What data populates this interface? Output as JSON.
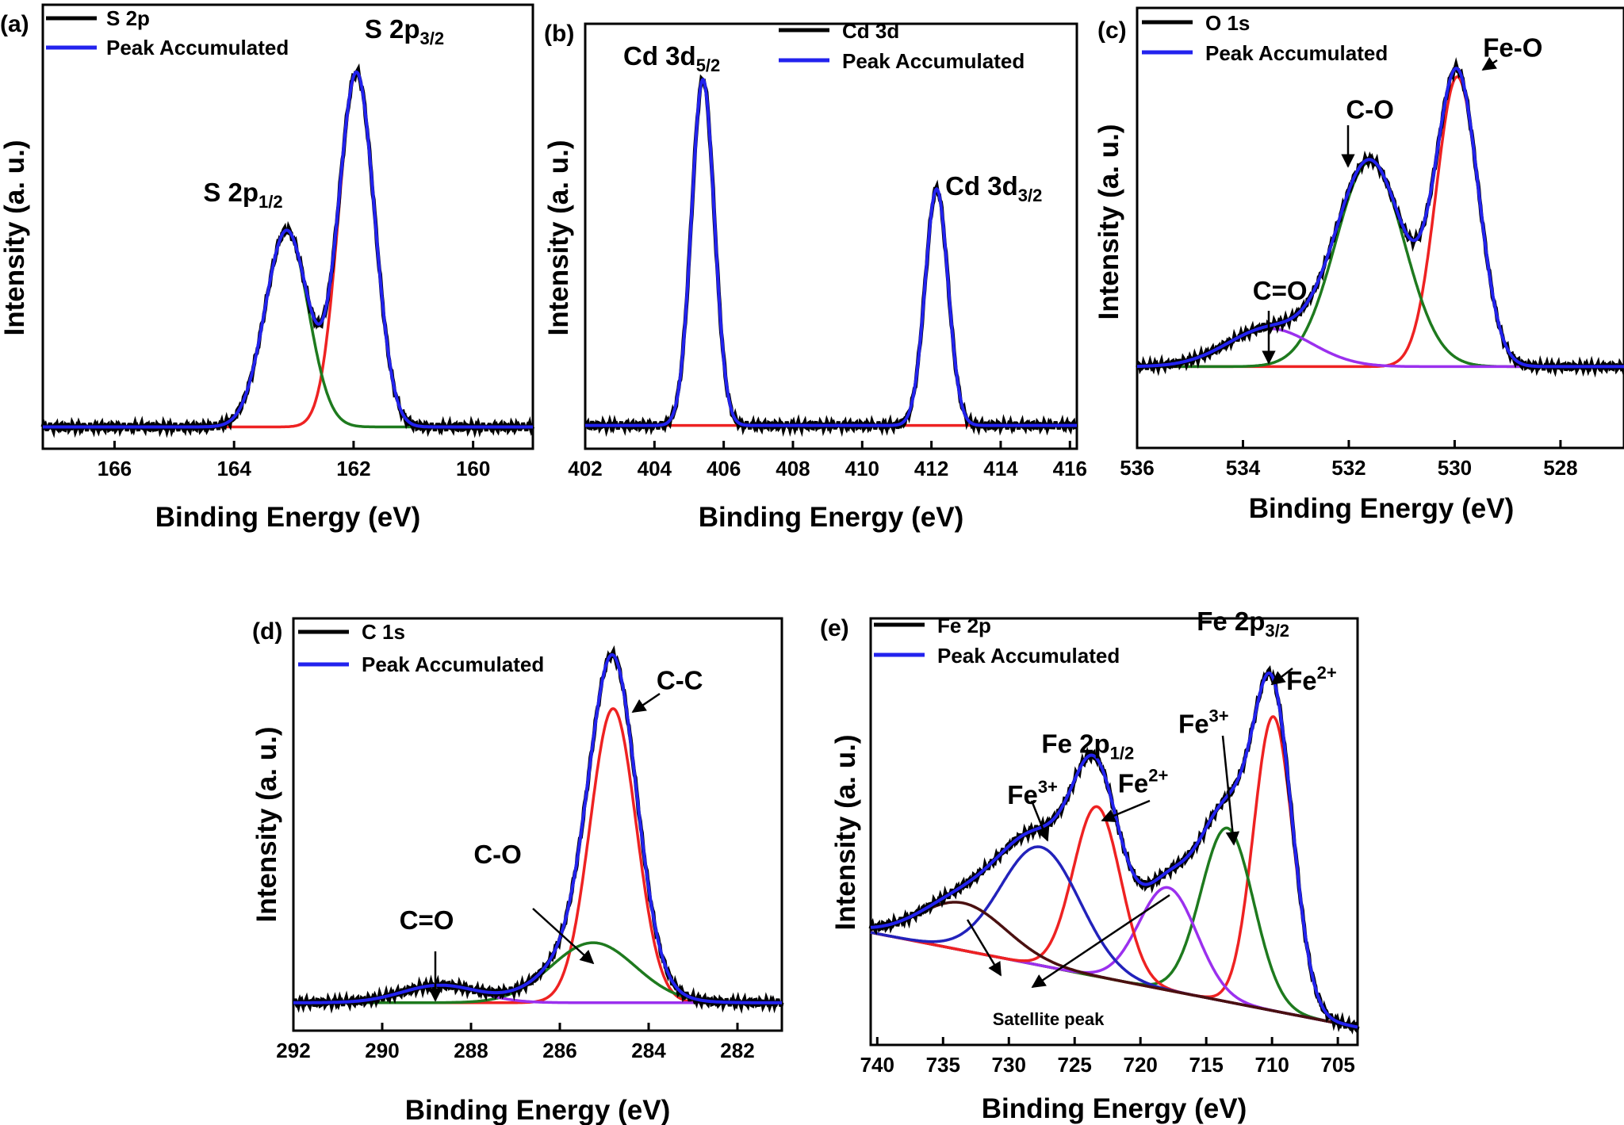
{
  "chart_data": [
    {
      "panel": "(a)",
      "type": "line",
      "xlabel": "Binding Energy (eV)",
      "ylabel": "Intensity (a. u.)",
      "xlim": [
        167.2,
        159.0
      ],
      "ylim": [
        0,
        1
      ],
      "xticks": [
        "166",
        "164",
        "162",
        "160"
      ],
      "xtick_values": [
        166,
        164,
        162,
        160
      ],
      "legend": [
        {
          "name": "S 2p",
          "color": "#000000"
        },
        {
          "name": "Peak Accumulated",
          "color": "#2222ee"
        }
      ],
      "background": 0.045,
      "components": [
        {
          "color": "#ee2222",
          "center": 161.95,
          "height": 0.855,
          "width": 0.3
        },
        {
          "color": "#1e7a1e",
          "center": 163.12,
          "height": 0.475,
          "width": 0.36
        }
      ],
      "annotations": [
        {
          "text": "S 2p",
          "sub": "3/2",
          "x": 161.15,
          "y": 0.985
        },
        {
          "text": "S 2p",
          "sub": "1/2",
          "x": 163.85,
          "y": 0.59
        }
      ]
    },
    {
      "panel": "(b)",
      "type": "line",
      "xlabel": "Binding Energy (eV)",
      "ylabel": "Intensity (a. u.)",
      "xlim": [
        402.0,
        416.2
      ],
      "ylim": [
        0,
        1
      ],
      "xticks": [
        "402",
        "404",
        "406",
        "408",
        "410",
        "412",
        "414",
        "416"
      ],
      "xtick_values": [
        402,
        404,
        406,
        408,
        410,
        412,
        414,
        416
      ],
      "legend": [
        {
          "name": "Cd 3d",
          "color": "#000000"
        },
        {
          "name": "Peak Accumulated",
          "color": "#2222ee"
        }
      ],
      "background": 0.045,
      "components": [
        {
          "color": "#ee2222",
          "center": 405.4,
          "height": 0.878,
          "width": 0.33
        },
        {
          "color": "#ee2222",
          "center": 412.15,
          "height": 0.6,
          "width": 0.33
        }
      ],
      "annotations": [
        {
          "text": "Cd 3d",
          "sub": "5/2",
          "x": 404.5,
          "y": 0.96
        },
        {
          "text": "Cd 3d",
          "sub": "3/2",
          "x": 413.8,
          "y": 0.63
        }
      ]
    },
    {
      "panel": "(c)",
      "type": "line",
      "xlabel": "Binding Energy (eV)",
      "ylabel": "Intensity (a. u.)",
      "xlim": [
        536.0,
        526.8
      ],
      "ylim": [
        0,
        1
      ],
      "xticks": [
        "536",
        "534",
        "532",
        "530",
        "528"
      ],
      "xtick_values": [
        536,
        534,
        532,
        530,
        528
      ],
      "legend": [
        {
          "name": "O 1s",
          "color": "#000000"
        },
        {
          "name": "Peak Accumulated",
          "color": "#2222ee"
        }
      ],
      "background": 0.115,
      "components": [
        {
          "color": "#ee2222",
          "center": 529.95,
          "height": 0.8,
          "width": 0.4
        },
        {
          "color": "#1e7a1e",
          "center": 531.6,
          "height": 0.565,
          "width": 0.65
        },
        {
          "color": "#9b30ee",
          "center": 533.5,
          "height": 0.105,
          "width": 0.8
        }
      ],
      "annotations": [
        {
          "text": "Fe-O",
          "x": 528.9,
          "y": 0.97
        },
        {
          "text": "C-O",
          "x": 531.6,
          "y": 0.8
        },
        {
          "text": "C=O",
          "x": 533.3,
          "y": 0.3
        }
      ]
    },
    {
      "panel": "(d)",
      "type": "line",
      "xlabel": "Binding Energy (eV)",
      "ylabel": "Intensity (a. u.)",
      "xlim": [
        292.0,
        281.0
      ],
      "ylim": [
        0,
        1
      ],
      "xticks": [
        "292",
        "290",
        "288",
        "286",
        "284",
        "282"
      ],
      "xtick_values": [
        292,
        290,
        288,
        286,
        284,
        282
      ],
      "legend": [
        {
          "name": "C 1s",
          "color": "#000000"
        },
        {
          "name": "Peak Accumulated",
          "color": "#2222ee"
        }
      ],
      "background": 0.06,
      "components": [
        {
          "color": "#ee2222",
          "center": 284.8,
          "height": 0.76,
          "width": 0.52
        },
        {
          "color": "#1e7a1e",
          "center": 285.25,
          "height": 0.155,
          "width": 0.95
        },
        {
          "color": "#9b30ee",
          "center": 288.7,
          "height": 0.045,
          "width": 0.85
        }
      ],
      "annotations": [
        {
          "text": "C-C",
          "x": 283.3,
          "y": 0.87
        },
        {
          "text": "C-O",
          "x": 287.4,
          "y": 0.42
        },
        {
          "text": "C=O",
          "x": 289.0,
          "y": 0.25
        }
      ]
    },
    {
      "panel": "(e)",
      "type": "line",
      "xlabel": "Binding Energy (eV)",
      "ylabel": "Intensity (a. u.)",
      "xlim": [
        740.5,
        703.5
      ],
      "ylim": [
        0,
        1
      ],
      "xticks": [
        "740",
        "735",
        "730",
        "725",
        "720",
        "715",
        "710",
        "705"
      ],
      "xtick_values": [
        740,
        735,
        730,
        725,
        720,
        715,
        710,
        705
      ],
      "legend": [
        {
          "name": "Fe 2p",
          "color": "#000000"
        },
        {
          "name": "Peak Accumulated",
          "color": "#2222ee"
        }
      ],
      "baseline_start": 0.285,
      "baseline_end": 0.045,
      "components": [
        {
          "color": "#ee2222",
          "center": 709.9,
          "height": 0.745,
          "width": 1.5
        },
        {
          "color": "#1e7a1e",
          "center": 713.4,
          "height": 0.44,
          "width": 2.0
        },
        {
          "color": "#9b30ee",
          "center": 717.9,
          "height": 0.26,
          "width": 2.2
        },
        {
          "color": "#ee2222",
          "center": 723.3,
          "height": 0.43,
          "width": 1.8
        },
        {
          "color": "#2222bb",
          "center": 727.6,
          "height": 0.3,
          "width": 3.0
        },
        {
          "color": "#4a1010",
          "center": 733.5,
          "height": 0.12,
          "width": 3.3
        }
      ],
      "annotations": [
        {
          "text": "Fe 2p",
          "sub": "3/2",
          "x": 712.2,
          "y": 1.05
        },
        {
          "text": "Fe",
          "sup": "2+",
          "x": 707.0,
          "y": 0.9
        },
        {
          "text": "Fe 2p",
          "sub": "1/2",
          "x": 724.0,
          "y": 0.74
        },
        {
          "text": "Fe",
          "sup": "2+",
          "x": 719.8,
          "y": 0.64
        },
        {
          "text": "Fe",
          "sup": "3+",
          "x": 728.2,
          "y": 0.61
        },
        {
          "text": "Fe",
          "sup": "3+",
          "x": 715.2,
          "y": 0.79
        },
        {
          "text": "Satellite peak",
          "x": 727.0,
          "y": 0.05
        }
      ]
    }
  ]
}
